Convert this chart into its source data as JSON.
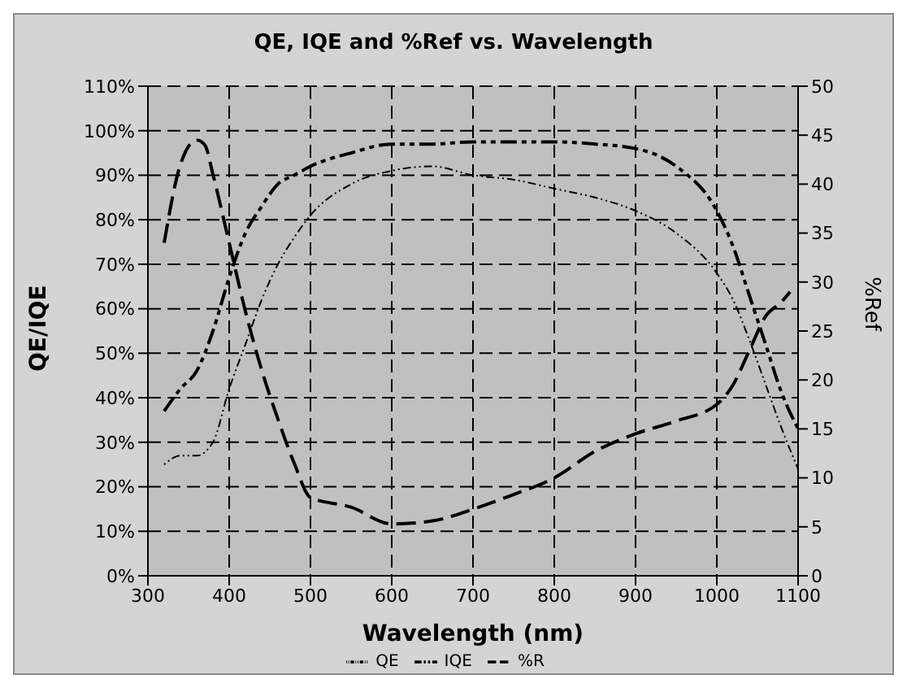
{
  "chart_data": {
    "type": "line",
    "title": "QE, IQE and %Ref vs. Wavelength",
    "xlabel": "Wavelength (nm)",
    "ylabel": "QE/IQE",
    "y2label": "%Ref",
    "x": [
      320,
      340,
      360,
      380,
      400,
      420,
      440,
      460,
      480,
      500,
      550,
      600,
      650,
      700,
      750,
      800,
      850,
      900,
      950,
      1000,
      1020,
      1040,
      1060,
      1080,
      1100
    ],
    "series": [
      {
        "name": "QE",
        "color": "#000000",
        "line_style": "dotted",
        "values": [
          25,
          27,
          27,
          30,
          42,
          52,
          62,
          70,
          76,
          81,
          88,
          91,
          92,
          90,
          89,
          87,
          85,
          82,
          77,
          68,
          62,
          53,
          43,
          33,
          24
        ]
      },
      {
        "name": "IQE",
        "color": "#000000",
        "line_style": "dashed",
        "values": [
          37,
          42,
          46,
          55,
          67,
          77,
          83,
          88,
          90,
          92,
          95,
          97,
          97,
          97.5,
          97.5,
          97.5,
          97,
          96,
          92,
          82,
          74,
          63,
          52,
          41,
          33
        ]
      },
      {
        "name": "%R",
        "color": "#000000",
        "line_style": "dashed",
        "axis": "y2",
        "x": [
          320,
          340,
          360,
          370,
          380,
          400,
          420,
          440,
          460,
          480,
          500,
          550,
          600,
          650,
          700,
          750,
          800,
          850,
          900,
          950,
          1000,
          1020,
          1040,
          1060,
          1080,
          1090
        ],
        "values": [
          34,
          42,
          44.5,
          44,
          41,
          34,
          27,
          21,
          16,
          11.5,
          8,
          7,
          5.3,
          5.6,
          6.8,
          8.3,
          10,
          12.7,
          14.5,
          15.8,
          17.5,
          19.5,
          23,
          26.5,
          28,
          29
        ]
      }
    ],
    "xlim": [
      300,
      1100
    ],
    "xticks": [
      300,
      400,
      500,
      600,
      700,
      800,
      900,
      1000,
      1100
    ],
    "ylim": [
      0,
      110
    ],
    "yticks": [
      {
        "value": 0,
        "label": "0%"
      },
      {
        "value": 10,
        "label": "10%"
      },
      {
        "value": 20,
        "label": "20%"
      },
      {
        "value": 30,
        "label": "30%"
      },
      {
        "value": 40,
        "label": "40%"
      },
      {
        "value": 50,
        "label": "50%"
      },
      {
        "value": 60,
        "label": "60%"
      },
      {
        "value": 70,
        "label": "70%"
      },
      {
        "value": 80,
        "label": "80%"
      },
      {
        "value": 90,
        "label": "90%"
      },
      {
        "value": 100,
        "label": "100%"
      },
      {
        "value": 110,
        "label": "110%"
      }
    ],
    "y2lim": [
      0,
      50
    ],
    "y2ticks": [
      0,
      5,
      10,
      15,
      20,
      25,
      30,
      35,
      40,
      45,
      50
    ],
    "grid": true,
    "legend": "bottom",
    "marker": "none"
  }
}
